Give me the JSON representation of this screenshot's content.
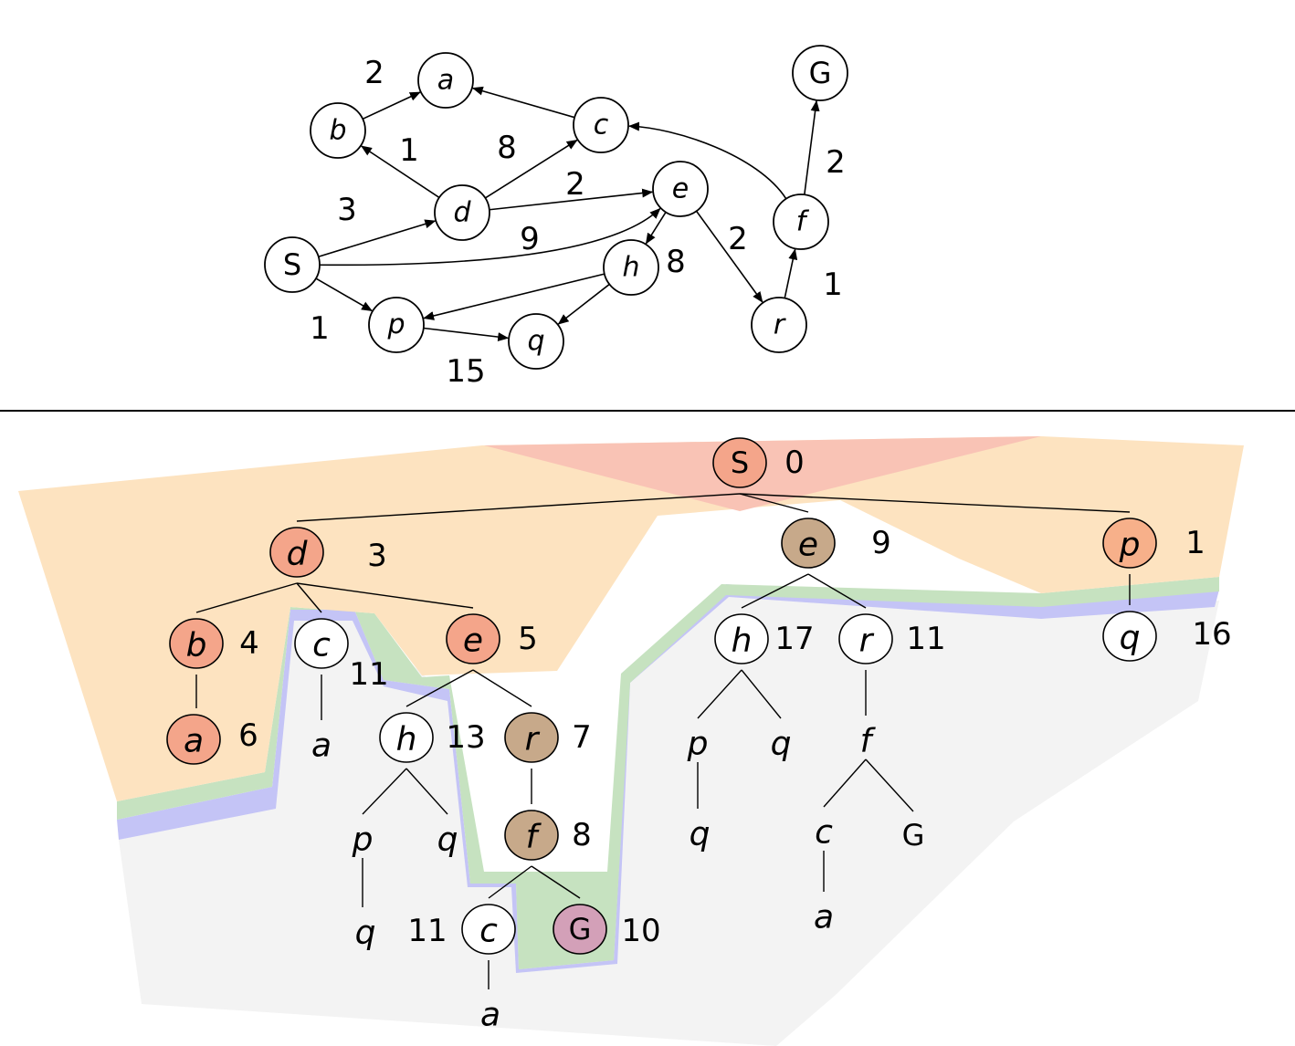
{
  "graph": {
    "nodes": [
      {
        "id": "S",
        "label": "S"
      },
      {
        "id": "a",
        "label": "a"
      },
      {
        "id": "b",
        "label": "b"
      },
      {
        "id": "c",
        "label": "c"
      },
      {
        "id": "d",
        "label": "d"
      },
      {
        "id": "e",
        "label": "e"
      },
      {
        "id": "f",
        "label": "f"
      },
      {
        "id": "G",
        "label": "G"
      },
      {
        "id": "h",
        "label": "h"
      },
      {
        "id": "p",
        "label": "p"
      },
      {
        "id": "q",
        "label": "q"
      },
      {
        "id": "r",
        "label": "r"
      }
    ],
    "edges": [
      {
        "from": "b",
        "to": "a",
        "weight": "2"
      },
      {
        "from": "c",
        "to": "a",
        "weight": ""
      },
      {
        "from": "d",
        "to": "b",
        "weight": "1"
      },
      {
        "from": "d",
        "to": "c",
        "weight": "8"
      },
      {
        "from": "d",
        "to": "e",
        "weight": "2"
      },
      {
        "from": "S",
        "to": "d",
        "weight": "3"
      },
      {
        "from": "S",
        "to": "e",
        "weight": "9"
      },
      {
        "from": "S",
        "to": "p",
        "weight": "1"
      },
      {
        "from": "e",
        "to": "h",
        "weight": "8"
      },
      {
        "from": "e",
        "to": "r",
        "weight": "2"
      },
      {
        "from": "h",
        "to": "p",
        "weight": ""
      },
      {
        "from": "h",
        "to": "q",
        "weight": ""
      },
      {
        "from": "p",
        "to": "q",
        "weight": "15"
      },
      {
        "from": "r",
        "to": "f",
        "weight": "1"
      },
      {
        "from": "f",
        "to": "c",
        "weight": ""
      },
      {
        "from": "f",
        "to": "G",
        "weight": "2"
      }
    ]
  },
  "tree": {
    "nodes": [
      {
        "id": "t_S",
        "label": "S",
        "cost": "0",
        "circle": true,
        "fill": "#f4a58a"
      },
      {
        "id": "t_d",
        "label": "d",
        "cost": "3",
        "circle": true,
        "fill": "#f4a58a"
      },
      {
        "id": "t_e1",
        "label": "e",
        "cost": "9",
        "circle": true,
        "fill": "#c7a98a"
      },
      {
        "id": "t_p",
        "label": "p",
        "cost": "1",
        "circle": true,
        "fill": "#f7b08a"
      },
      {
        "id": "t_b",
        "label": "b",
        "cost": "4",
        "circle": true,
        "fill": "#f4a58a"
      },
      {
        "id": "t_c1",
        "label": "c",
        "cost": "11",
        "circle": true,
        "fill": "#ffffff"
      },
      {
        "id": "t_e2",
        "label": "e",
        "cost": "5",
        "circle": true,
        "fill": "#f4a58a"
      },
      {
        "id": "t_a1",
        "label": "a",
        "cost": "6",
        "circle": true,
        "fill": "#f4a58a"
      },
      {
        "id": "t_a2",
        "label": "a",
        "cost": "",
        "circle": false,
        "fill": ""
      },
      {
        "id": "t_h1",
        "label": "h",
        "cost": "13",
        "circle": true,
        "fill": "#ffffff"
      },
      {
        "id": "t_r1",
        "label": "r",
        "cost": "7",
        "circle": true,
        "fill": "#c7a98a"
      },
      {
        "id": "t_p1",
        "label": "p",
        "cost": "",
        "circle": false,
        "fill": ""
      },
      {
        "id": "t_q1",
        "label": "q",
        "cost": "",
        "circle": false,
        "fill": ""
      },
      {
        "id": "t_q2",
        "label": "q",
        "cost": "",
        "circle": false,
        "fill": ""
      },
      {
        "id": "t_f1",
        "label": "f",
        "cost": "8",
        "circle": true,
        "fill": "#c7a98a"
      },
      {
        "id": "t_c2",
        "label": "c",
        "cost": "11",
        "circle": true,
        "fill": "#ffffff"
      },
      {
        "id": "t_G1",
        "label": "G",
        "cost": "10",
        "circle": true,
        "fill": "#d3a0b8"
      },
      {
        "id": "t_a3",
        "label": "a",
        "cost": "",
        "circle": false,
        "fill": ""
      },
      {
        "id": "t_h2",
        "label": "h",
        "cost": "17",
        "circle": true,
        "fill": "#ffffff"
      },
      {
        "id": "t_r2",
        "label": "r",
        "cost": "11",
        "circle": true,
        "fill": "#ffffff"
      },
      {
        "id": "t_p2",
        "label": "p",
        "cost": "",
        "circle": false,
        "fill": ""
      },
      {
        "id": "t_q3",
        "label": "q",
        "cost": "",
        "circle": false,
        "fill": ""
      },
      {
        "id": "t_q4",
        "label": "q",
        "cost": "",
        "circle": false,
        "fill": ""
      },
      {
        "id": "t_f2",
        "label": "f",
        "cost": "",
        "circle": false,
        "fill": ""
      },
      {
        "id": "t_c3",
        "label": "c",
        "cost": "",
        "circle": false,
        "fill": ""
      },
      {
        "id": "t_G2",
        "label": "G",
        "cost": "",
        "circle": false,
        "fill": ""
      },
      {
        "id": "t_a4",
        "label": "a",
        "cost": "",
        "circle": false,
        "fill": ""
      },
      {
        "id": "t_q5",
        "label": "q",
        "cost": "16",
        "circle": true,
        "fill": "#ffffff"
      }
    ],
    "edges": [
      [
        "t_S",
        "t_d"
      ],
      [
        "t_S",
        "t_e1"
      ],
      [
        "t_S",
        "t_p"
      ],
      [
        "t_d",
        "t_b"
      ],
      [
        "t_d",
        "t_c1"
      ],
      [
        "t_d",
        "t_e2"
      ],
      [
        "t_b",
        "t_a1"
      ],
      [
        "t_c1",
        "t_a2"
      ],
      [
        "t_e2",
        "t_h1"
      ],
      [
        "t_e2",
        "t_r1"
      ],
      [
        "t_h1",
        "t_p1"
      ],
      [
        "t_h1",
        "t_q1"
      ],
      [
        "t_p1",
        "t_q2"
      ],
      [
        "t_r1",
        "t_f1"
      ],
      [
        "t_f1",
        "t_c2"
      ],
      [
        "t_f1",
        "t_G1"
      ],
      [
        "t_c2",
        "t_a3"
      ],
      [
        "t_e1",
        "t_h2"
      ],
      [
        "t_e1",
        "t_r2"
      ],
      [
        "t_h2",
        "t_p2"
      ],
      [
        "t_h2",
        "t_q3"
      ],
      [
        "t_p2",
        "t_q4"
      ],
      [
        "t_r2",
        "t_f2"
      ],
      [
        "t_f2",
        "t_c3"
      ],
      [
        "t_f2",
        "t_G2"
      ],
      [
        "t_c3",
        "t_a4"
      ],
      [
        "t_p",
        "t_q5"
      ]
    ]
  },
  "colors": {
    "contour_red": "#f9c3b5",
    "contour_orange": "#fde3c0",
    "contour_green": "#c6e2c0",
    "contour_blue": "#c4c4f6",
    "contour_gray": "#f3f3f3"
  }
}
